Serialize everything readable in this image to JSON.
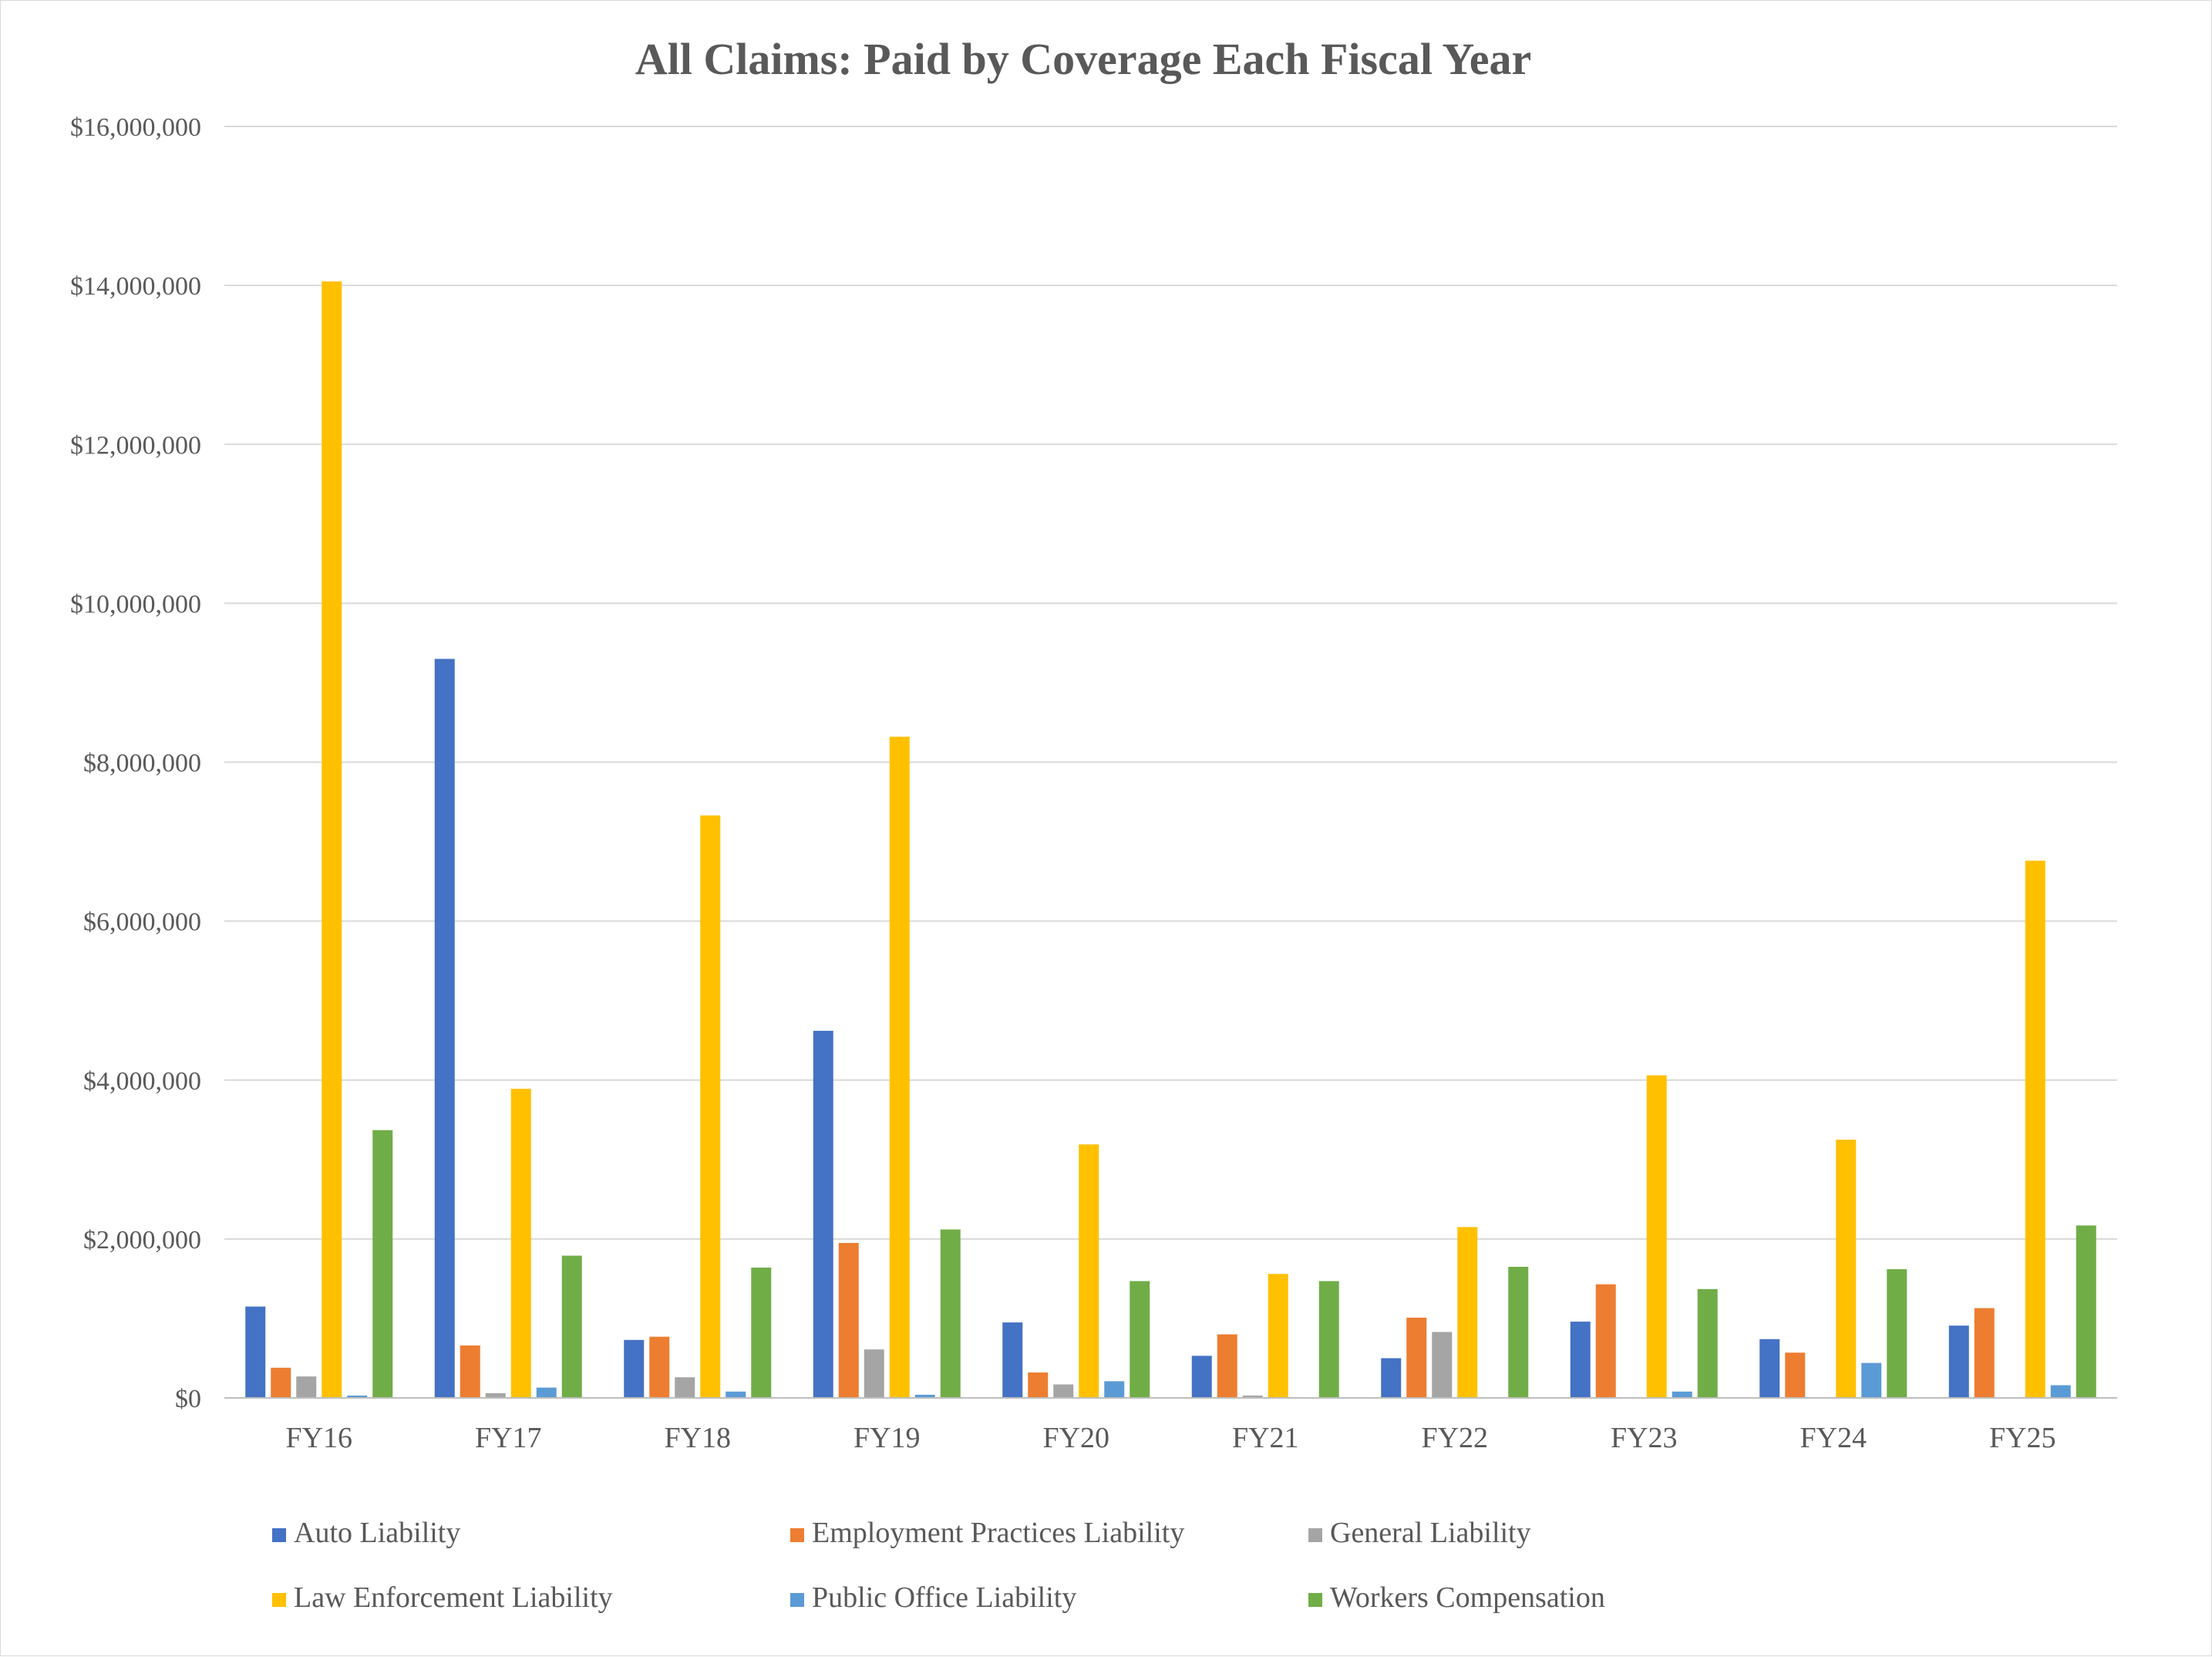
{
  "chart_data": {
    "type": "bar",
    "title": "All Claims: Paid by Coverage Each Fiscal Year",
    "xlabel": "",
    "ylabel": "",
    "categories": [
      "FY16",
      "FY17",
      "FY18",
      "FY19",
      "FY20",
      "FY21",
      "FY22",
      "FY23",
      "FY24",
      "FY25"
    ],
    "ylim": [
      0,
      16000000
    ],
    "yticks": [
      0,
      2000000,
      4000000,
      6000000,
      8000000,
      10000000,
      12000000,
      14000000,
      16000000
    ],
    "ytick_labels": [
      "$0",
      "$2,000,000",
      "$4,000,000",
      "$6,000,000",
      "$8,000,000",
      "$10,000,000",
      "$12,000,000",
      "$14,000,000",
      "$16,000,000"
    ],
    "grid": true,
    "legend_position": "bottom",
    "series": [
      {
        "name": "Auto Liability",
        "color": "#4472C4",
        "values": [
          1150000,
          9300000,
          730000,
          4620000,
          950000,
          530000,
          500000,
          960000,
          740000,
          910000
        ]
      },
      {
        "name": "Employment Practices Liability",
        "color": "#ED7D31",
        "values": [
          380000,
          660000,
          770000,
          1950000,
          320000,
          800000,
          1010000,
          1430000,
          570000,
          1130000
        ]
      },
      {
        "name": "General Liability",
        "color": "#A5A5A5",
        "values": [
          270000,
          60000,
          260000,
          610000,
          170000,
          30000,
          830000,
          0,
          0,
          0
        ]
      },
      {
        "name": "Law Enforcement Liability",
        "color": "#FFC000",
        "values": [
          14050000,
          3890000,
          7330000,
          8320000,
          3190000,
          1560000,
          2150000,
          4060000,
          3250000,
          6760000
        ]
      },
      {
        "name": "Public Office Liability",
        "color": "#5B9BD5",
        "values": [
          30000,
          130000,
          80000,
          40000,
          210000,
          0,
          0,
          80000,
          440000,
          160000
        ]
      },
      {
        "name": "Workers Compensation",
        "color": "#70AD47",
        "values": [
          3370000,
          1790000,
          1640000,
          2120000,
          1470000,
          1470000,
          1650000,
          1370000,
          1620000,
          2170000
        ]
      }
    ]
  }
}
